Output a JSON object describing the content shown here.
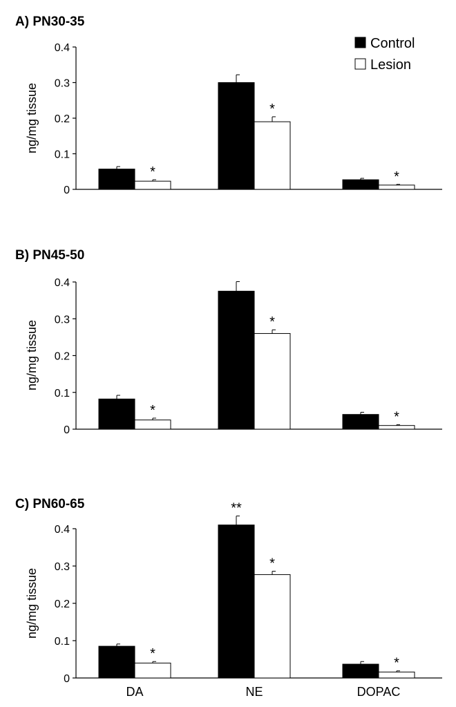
{
  "chart_data": [
    {
      "type": "bar",
      "title": "A) PN30-35",
      "ylabel": "ng/mg tissue",
      "xlabel": "",
      "categories": [
        "DA",
        "NE",
        "DOPAC"
      ],
      "show_category_labels": false,
      "ylim": [
        0,
        0.4
      ],
      "yticks": [
        "0",
        "0.1",
        "0.2",
        "0.3",
        "0.4"
      ],
      "series": [
        {
          "name": "Control",
          "color": "#000000",
          "values": [
            0.057,
            0.3,
            0.027
          ],
          "errors": [
            0.007,
            0.022,
            0.004
          ]
        },
        {
          "name": "Lesion",
          "color": "#ffffff",
          "values": [
            0.023,
            0.19,
            0.012
          ],
          "errors": [
            0.004,
            0.014,
            0.002
          ]
        }
      ],
      "annotations": [
        {
          "category": "DA",
          "series": "Lesion",
          "text": "*"
        },
        {
          "category": "NE",
          "series": "Lesion",
          "text": "*"
        },
        {
          "category": "DOPAC",
          "series": "Lesion",
          "text": "*"
        }
      ],
      "legend": {
        "position": "top-right",
        "entries": [
          "Control",
          "Lesion"
        ]
      }
    },
    {
      "type": "bar",
      "title": "B) PN45-50",
      "ylabel": "ng/mg tissue",
      "xlabel": "",
      "categories": [
        "DA",
        "NE",
        "DOPAC"
      ],
      "show_category_labels": false,
      "ylim": [
        0,
        0.4
      ],
      "yticks": [
        "0",
        "0.1",
        "0.2",
        "0.3",
        "0.4"
      ],
      "series": [
        {
          "name": "Control",
          "color": "#000000",
          "values": [
            0.082,
            0.375,
            0.04
          ],
          "errors": [
            0.01,
            0.026,
            0.006
          ]
        },
        {
          "name": "Lesion",
          "color": "#ffffff",
          "values": [
            0.025,
            0.26,
            0.01
          ],
          "errors": [
            0.005,
            0.01,
            0.002
          ]
        }
      ],
      "annotations": [
        {
          "category": "DA",
          "series": "Lesion",
          "text": "*"
        },
        {
          "category": "NE",
          "series": "Lesion",
          "text": "*"
        },
        {
          "category": "DOPAC",
          "series": "Lesion",
          "text": "*"
        }
      ],
      "legend": {
        "position": "none",
        "entries": []
      }
    },
    {
      "type": "bar",
      "title": "C) PN60-65",
      "ylabel": "ng/mg tissue",
      "xlabel": "",
      "categories": [
        "DA",
        "NE",
        "DOPAC"
      ],
      "show_category_labels": true,
      "ylim": [
        0,
        0.4
      ],
      "yticks": [
        "0",
        "0.1",
        "0.2",
        "0.3",
        "0.4"
      ],
      "series": [
        {
          "name": "Control",
          "color": "#000000",
          "values": [
            0.085,
            0.41,
            0.037
          ],
          "errors": [
            0.006,
            0.024,
            0.007
          ]
        },
        {
          "name": "Lesion",
          "color": "#ffffff",
          "values": [
            0.04,
            0.277,
            0.016
          ],
          "errors": [
            0.004,
            0.009,
            0.003
          ]
        }
      ],
      "annotations": [
        {
          "category": "NE",
          "series": "Control",
          "text": "**"
        },
        {
          "category": "DA",
          "series": "Lesion",
          "text": "*"
        },
        {
          "category": "NE",
          "series": "Lesion",
          "text": "*"
        },
        {
          "category": "DOPAC",
          "series": "Lesion",
          "text": "*"
        }
      ],
      "legend": {
        "position": "none",
        "entries": []
      }
    }
  ]
}
